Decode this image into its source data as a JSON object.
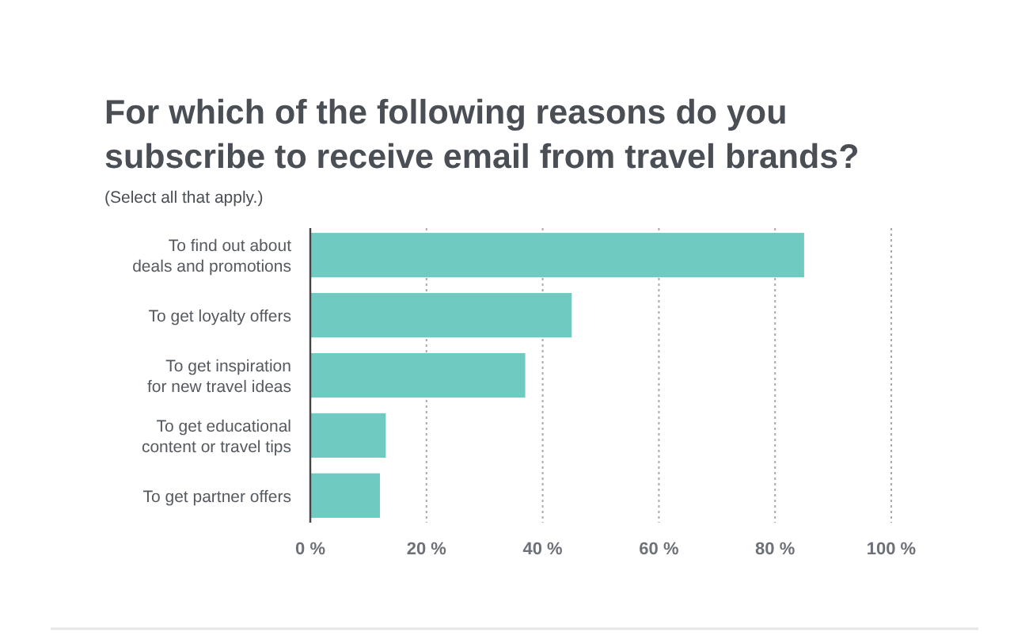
{
  "chart_data": {
    "type": "bar",
    "orientation": "horizontal",
    "title": "For which of the following reasons do you subscribe to receive email from travel brands?",
    "subtitle": "(Select all that apply.)",
    "categories": [
      "To find out about deals and promotions",
      "To get loyalty offers",
      "To get inspiration for new travel ideas",
      "To get educational content or travel tips",
      "To get partner offers"
    ],
    "values": [
      85,
      45,
      37,
      13,
      12
    ],
    "color": "#6fcbc1",
    "xlim": [
      0,
      100
    ],
    "xticks": [
      {
        "value": 0,
        "label": "0 %"
      },
      {
        "value": 20,
        "label": "20 %"
      },
      {
        "value": 40,
        "label": "40 %"
      },
      {
        "value": 60,
        "label": "60 %"
      },
      {
        "value": 80,
        "label": "80 %"
      },
      {
        "value": 100,
        "label": "100 %"
      }
    ],
    "grid": "x"
  }
}
